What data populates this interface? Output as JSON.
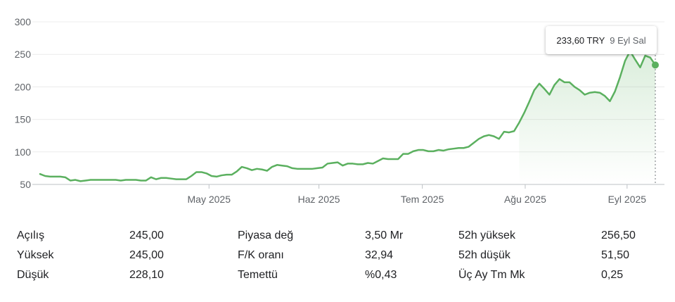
{
  "chart_data": {
    "type": "area",
    "ylim": [
      50,
      300
    ],
    "yticks": [
      50,
      100,
      150,
      200,
      250,
      300
    ],
    "xticks": [
      "May 2025",
      "Haz 2025",
      "Tem 2025",
      "Ağu 2025",
      "Eyl 2025"
    ],
    "grid": true,
    "line_color": "#5bb05f",
    "series": [
      {
        "values": [
          66,
          63,
          62,
          62,
          62,
          61,
          56,
          57,
          55,
          56,
          57,
          57,
          57,
          57,
          57,
          57,
          56,
          57,
          57,
          57,
          56,
          56,
          61,
          58,
          60,
          60,
          59,
          58,
          58,
          58,
          63,
          69,
          69,
          67,
          63,
          62,
          64,
          65,
          65,
          70,
          77,
          75,
          72,
          74,
          73,
          71,
          77,
          80,
          79,
          78,
          75,
          74,
          74,
          74,
          74,
          75,
          76,
          82,
          83,
          84,
          79,
          82,
          82,
          81,
          81,
          83,
          82,
          86,
          90,
          89,
          89,
          89,
          97,
          97,
          101,
          103,
          103,
          101,
          101,
          103,
          102,
          104,
          105,
          106,
          106,
          108,
          114,
          120,
          124,
          126,
          124,
          120,
          131,
          130,
          132,
          145,
          160,
          177,
          195,
          205,
          197,
          188,
          203,
          212,
          207,
          207,
          200,
          195,
          188,
          191,
          192,
          191,
          186,
          178,
          193,
          215,
          240,
          255,
          242,
          230,
          248,
          245,
          233.6
        ]
      }
    ],
    "tooltip": {
      "price": "233,60 TRY",
      "date": "9 Eyl Sal"
    }
  },
  "stats": {
    "col1": [
      {
        "label": "Açılış",
        "value": "245,00"
      },
      {
        "label": "Yüksek",
        "value": "245,00"
      },
      {
        "label": "Düşük",
        "value": "228,10"
      }
    ],
    "col2": [
      {
        "label": "Piyasa değ",
        "value": "3,50 Mr"
      },
      {
        "label": "F/K oranı",
        "value": "32,94"
      },
      {
        "label": "Temettü",
        "value": "%0,43"
      }
    ],
    "col3": [
      {
        "label": "52h yüksek",
        "value": "256,50"
      },
      {
        "label": "52h düşük",
        "value": "51,50"
      },
      {
        "label": "Üç Ay Tm Mk",
        "value": "0,25"
      }
    ]
  }
}
